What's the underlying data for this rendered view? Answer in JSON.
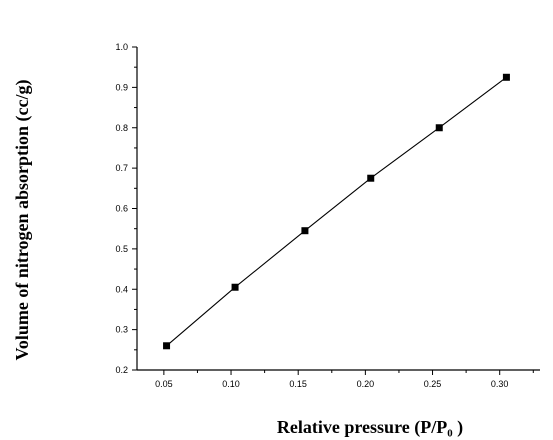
{
  "chart_data": {
    "type": "line",
    "xlabel": "Relative pressure (P/P₀ )",
    "ylabel": "Volume of nitrogen absorption (cc/g)",
    "xlim": [
      0.03,
      0.33
    ],
    "ylim": [
      0.2,
      1.0
    ],
    "x_ticks": [
      "0.05",
      "0.10",
      "0.15",
      "0.20",
      "0.25",
      "0.30"
    ],
    "y_ticks": [
      "0.2",
      "0.3",
      "0.4",
      "0.5",
      "0.6",
      "0.7",
      "0.8",
      "0.9",
      "1.0"
    ],
    "grid": false,
    "series": [
      {
        "marker": "square",
        "color": "#000000",
        "x": [
          0.052,
          0.103,
          0.155,
          0.204,
          0.255,
          0.305
        ],
        "y": [
          0.26,
          0.405,
          0.545,
          0.675,
          0.8,
          0.925
        ]
      }
    ]
  }
}
